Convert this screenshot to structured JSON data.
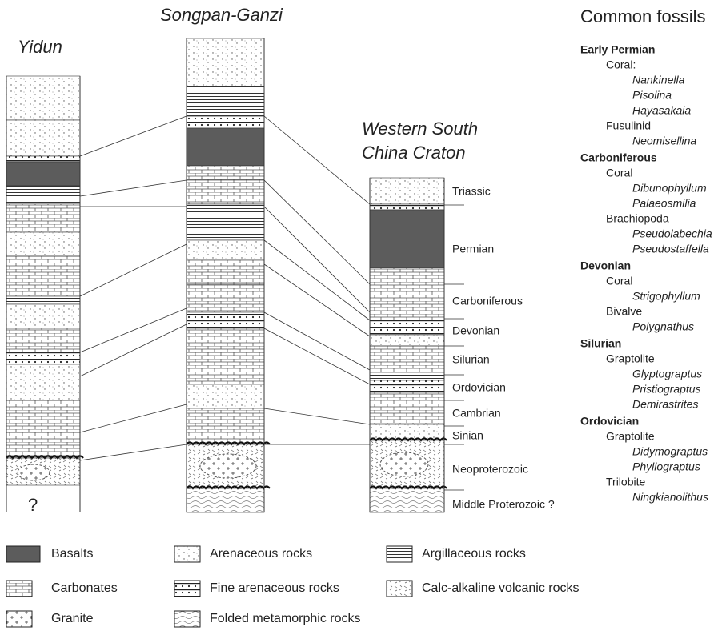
{
  "columns": [
    {
      "title": [
        "Yidun"
      ]
    },
    {
      "title": [
        "Songpan-Ganzi"
      ]
    },
    {
      "title": [
        "Western South",
        "China Craton"
      ]
    }
  ],
  "unknown_mark": "?",
  "stages": [
    "Triassic",
    "Permian",
    "Carboniferous",
    "Devonian",
    "Silurian",
    "Ordovician",
    "Cambrian",
    "Sinian",
    "Neoproterozoic",
    "Middle Proterozoic ?"
  ],
  "fossils": {
    "title": "Common fossils",
    "periods": [
      {
        "name": "Early Permian",
        "groups": [
          {
            "name": "Coral:",
            "taxa": [
              "Nankinella",
              "Pisolina",
              "Hayasakaia"
            ]
          },
          {
            "name": "Fusulinid",
            "taxa": [
              "Neomisellina"
            ]
          }
        ]
      },
      {
        "name": "Carboniferous",
        "groups": [
          {
            "name": "Coral",
            "taxa": [
              "Dibunophyllum",
              "Palaeosmilia"
            ]
          },
          {
            "name": "Brachiopoda",
            "taxa": [
              "Pseudolabechia",
              "Pseudostaffella"
            ]
          }
        ]
      },
      {
        "name": "Devonian",
        "groups": [
          {
            "name": "Coral",
            "taxa": [
              "Strigophyllum"
            ]
          },
          {
            "name": "Bivalve",
            "taxa": [
              "Polygnathus"
            ]
          }
        ]
      },
      {
        "name": "Silurian",
        "groups": [
          {
            "name": "Graptolite",
            "taxa": [
              "Glyptograptus",
              "Pristiograptus",
              "Demirastrites"
            ]
          }
        ]
      },
      {
        "name": "Ordovician",
        "groups": [
          {
            "name": "Graptolite",
            "taxa": [
              "Didymograptus",
              "Phyllograptus"
            ]
          },
          {
            "name": "Trilobite",
            "taxa": [
              "Ningkianolithus"
            ]
          }
        ]
      }
    ]
  },
  "legend": [
    "Basalts",
    "Carbonates",
    "Granite",
    "Arenaceous rocks",
    "Fine arenaceous rocks",
    "Folded metamorphic rocks",
    "Argillaceous rocks",
    "Calc-alkaline volcanic rocks"
  ]
}
